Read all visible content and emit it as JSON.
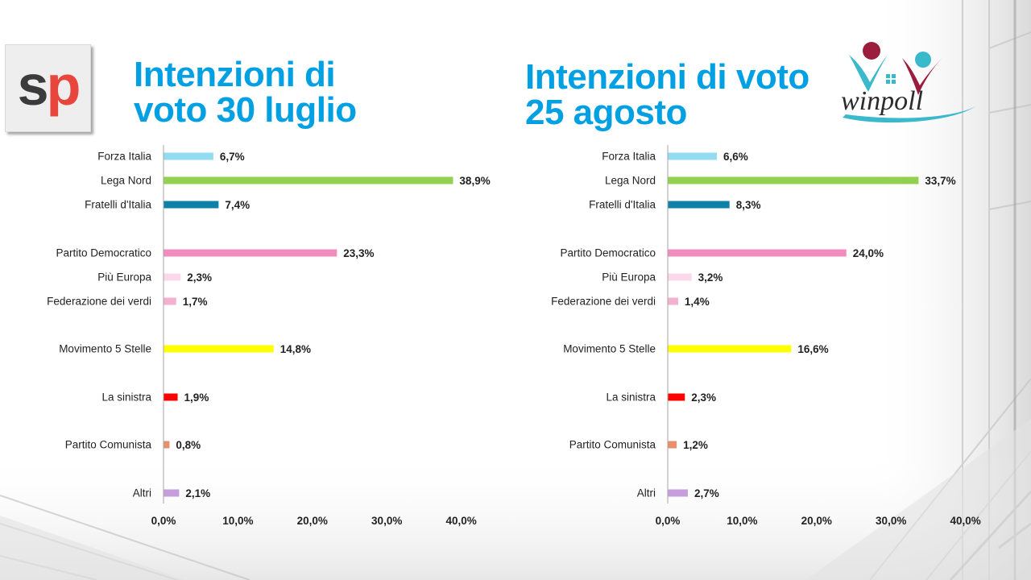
{
  "titles": {
    "left": {
      "line1": "Intenzioni di",
      "line2": "voto 30 luglio"
    },
    "right": {
      "line1": "Intenzioni di voto",
      "line2": "25 agosto"
    }
  },
  "logos": {
    "left": {
      "s": "s",
      "p": "p"
    },
    "right": {
      "text": "winpoll"
    }
  },
  "chart_data": [
    {
      "type": "bar",
      "orientation": "horizontal",
      "title": "Intenzioni di voto 30 luglio",
      "categories": [
        "Forza Italia",
        "Lega Nord",
        "Fratelli d'Italia",
        "Partito Democratico",
        "Più Europa",
        "Federazione dei verdi",
        "Movimento 5 Stelle",
        "La sinistra",
        "Partito Comunista",
        "Altri"
      ],
      "values": [
        6.7,
        38.9,
        7.4,
        23.3,
        2.3,
        1.7,
        14.8,
        1.9,
        0.8,
        2.1
      ],
      "value_labels": [
        "6,7%",
        "38,9%",
        "7,4%",
        "23,3%",
        "2,3%",
        "1,7%",
        "14,8%",
        "1,9%",
        "0,8%",
        "2,1%"
      ],
      "colors": [
        "#92dcf1",
        "#92d050",
        "#0f81a8",
        "#f08cbe",
        "#fbd8ea",
        "#f4b0cf",
        "#ffff00",
        "#ff0000",
        "#e98e6a",
        "#c59edb"
      ],
      "xlim": [
        0,
        40
      ],
      "xticks": [
        "0,0%",
        "10,0%",
        "20,0%",
        "30,0%",
        "40,0%"
      ],
      "grid": false,
      "legend": "none"
    },
    {
      "type": "bar",
      "orientation": "horizontal",
      "title": "Intenzioni di voto 25 agosto",
      "categories": [
        "Forza Italia",
        "Lega Nord",
        "Fratelli d'Italia",
        "Partito Democratico",
        "Più Europa",
        "Federazione dei verdi",
        "Movimento 5 Stelle",
        "La sinistra",
        "Partito Comunista",
        "Altri"
      ],
      "values": [
        6.6,
        33.7,
        8.3,
        24.0,
        3.2,
        1.4,
        16.6,
        2.3,
        1.2,
        2.7
      ],
      "value_labels": [
        "6,6%",
        "33,7%",
        "8,3%",
        "24,0%",
        "3,2%",
        "1,4%",
        "16,6%",
        "2,3%",
        "1,2%",
        "2,7%"
      ],
      "colors": [
        "#92dcf1",
        "#92d050",
        "#0f81a8",
        "#f08cbe",
        "#fbd8ea",
        "#f4b0cf",
        "#ffff00",
        "#ff0000",
        "#e98e6a",
        "#c59edb"
      ],
      "xlim": [
        0,
        40
      ],
      "xticks": [
        "0,0%",
        "10,0%",
        "20,0%",
        "30,0%",
        "40,0%"
      ],
      "grid": false,
      "legend": "none"
    }
  ]
}
